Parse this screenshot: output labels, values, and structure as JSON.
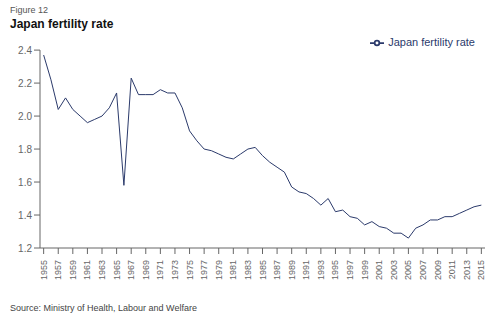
{
  "chart_data": {
    "type": "line",
    "title": "Japan fertility rate",
    "annotations": [
      "Figure 12",
      "Source: Ministry of Health, Labour and Welfare"
    ],
    "x": [
      1955,
      1956,
      1957,
      1958,
      1959,
      1960,
      1961,
      1962,
      1963,
      1964,
      1965,
      1966,
      1967,
      1968,
      1969,
      1970,
      1971,
      1972,
      1973,
      1974,
      1975,
      1976,
      1977,
      1978,
      1979,
      1980,
      1981,
      1982,
      1983,
      1984,
      1985,
      1986,
      1987,
      1988,
      1989,
      1990,
      1991,
      1992,
      1993,
      1994,
      1995,
      1996,
      1997,
      1998,
      1999,
      2000,
      2001,
      2002,
      2003,
      2004,
      2005,
      2006,
      2007,
      2008,
      2009,
      2010,
      2011,
      2012,
      2013,
      2014,
      2015
    ],
    "series": [
      {
        "name": "Japan fertility rate",
        "color": "#2b3a6b",
        "values": [
          2.37,
          2.22,
          2.04,
          2.11,
          2.04,
          2.0,
          1.96,
          1.98,
          2.0,
          2.05,
          2.14,
          1.58,
          2.23,
          2.13,
          2.13,
          2.13,
          2.16,
          2.14,
          2.14,
          2.05,
          1.91,
          1.85,
          1.8,
          1.79,
          1.77,
          1.75,
          1.74,
          1.77,
          1.8,
          1.81,
          1.76,
          1.72,
          1.69,
          1.66,
          1.57,
          1.54,
          1.53,
          1.5,
          1.46,
          1.5,
          1.42,
          1.43,
          1.39,
          1.38,
          1.34,
          1.36,
          1.33,
          1.32,
          1.29,
          1.29,
          1.26,
          1.32,
          1.34,
          1.37,
          1.37,
          1.39,
          1.39,
          1.41,
          1.43,
          1.45,
          1.46
        ]
      }
    ],
    "xlim": [
      1954.5,
      2015.5
    ],
    "xticks": [
      1955,
      1957,
      1959,
      1961,
      1963,
      1965,
      1967,
      1969,
      1971,
      1973,
      1975,
      1977,
      1979,
      1981,
      1983,
      1985,
      1987,
      1989,
      1991,
      1993,
      1995,
      1997,
      1999,
      2001,
      2003,
      2005,
      2007,
      2009,
      2011,
      2013,
      2015
    ],
    "ylim": [
      1.2,
      2.4
    ],
    "yticks": [
      1.2,
      1.4,
      1.6,
      1.8,
      {
        "value": 2.0,
        "label": "2.0"
      },
      2.2,
      2.4
    ],
    "grid": false,
    "legend": "upper right"
  }
}
